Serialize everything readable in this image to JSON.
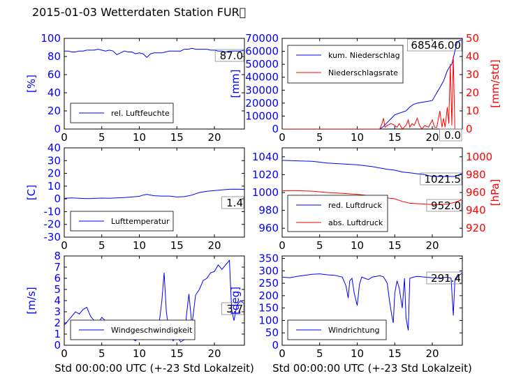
{
  "title": "2015-01-03 Wetterdaten Station FUR\u0000",
  "xlabel": "Std 00:00:00 UTC (+-23 Std Lokalzeit)",
  "colors": {
    "left": "#0000ff",
    "right": "#ff0000",
    "bg": "#ffffff"
  },
  "chart_data": [
    {
      "type": "line",
      "panel": "humidity",
      "ylabel": "[%]",
      "ylim": [
        0,
        100
      ],
      "yticks": [
        0,
        20,
        40,
        60,
        80,
        100
      ],
      "xlim": [
        0,
        24
      ],
      "xticks": [
        0,
        5,
        10,
        15,
        20
      ],
      "current_value": "87.0",
      "legend_placement": "lower-left",
      "series": [
        {
          "name": "rel. Luftfeuchte",
          "color": "#0000ff",
          "x": [
            0,
            0.5,
            1,
            1.5,
            2,
            2.5,
            3,
            3.5,
            4,
            4.5,
            5,
            5.5,
            6,
            6.5,
            7,
            7.5,
            8,
            8.5,
            9,
            9.5,
            10,
            10.5,
            11,
            11.5,
            12,
            12.5,
            13,
            13.5,
            14,
            14.5,
            15,
            15.5,
            16,
            16.5,
            17,
            17.5,
            18,
            18.5,
            19,
            19.5,
            20,
            20.5,
            21,
            21.5,
            22,
            22.5,
            23,
            23.5,
            24
          ],
          "y": [
            86,
            86,
            85,
            85,
            86,
            86,
            87,
            87,
            87,
            88,
            87,
            86,
            87,
            86,
            82,
            84,
            86,
            85,
            85,
            83,
            84,
            83,
            79,
            83,
            84,
            84,
            84,
            85,
            86,
            86,
            86,
            86,
            88,
            88,
            89,
            88,
            88,
            88,
            88,
            87,
            87,
            86,
            86,
            85,
            86,
            86,
            86,
            86,
            87
          ]
        }
      ]
    },
    {
      "type": "line",
      "panel": "precipitation",
      "ylabel": "[mm]",
      "ylim": [
        0,
        70000
      ],
      "yticks": [
        0,
        10000,
        20000,
        30000,
        40000,
        50000,
        60000,
        70000
      ],
      "y2label": "[mm/std]",
      "y2lim": [
        0,
        50
      ],
      "y2ticks": [
        0,
        10,
        20,
        30,
        40,
        50
      ],
      "xlim": [
        0,
        24
      ],
      "xticks": [
        0,
        5,
        10,
        15,
        20
      ],
      "current_value": "68546.00",
      "current_value2": "0.0",
      "legend_placement": "top-left",
      "series": [
        {
          "name": "kum. Niederschlag",
          "axis": "left",
          "color": "#0000ff",
          "x": [
            0,
            13,
            13.5,
            14,
            14.5,
            15,
            15.5,
            16,
            16.5,
            17,
            17.5,
            18,
            18.5,
            19,
            19.5,
            20,
            20.5,
            21,
            21.5,
            22,
            22.3,
            22.6,
            23,
            23.3,
            23.7,
            24
          ],
          "y": [
            0,
            0,
            2000,
            5000,
            8000,
            11000,
            12000,
            13000,
            14000,
            17000,
            19000,
            20000,
            20500,
            21000,
            21500,
            22000,
            27000,
            32000,
            37000,
            45000,
            48000,
            50000,
            60000,
            67000,
            68546,
            68546
          ]
        },
        {
          "name": "Niederschlagsrate",
          "axis": "right",
          "color": "#ff0000",
          "x": [
            0,
            13,
            13.3,
            13.5,
            13.7,
            14,
            14.5,
            15,
            15.3,
            15.6,
            16,
            16.5,
            16.8,
            17,
            17.3,
            17.6,
            18,
            18.3,
            18.6,
            19,
            19.5,
            20,
            20.3,
            20.6,
            21,
            21.3,
            21.5,
            21.7,
            22,
            22.2,
            22.4,
            22.6,
            22.8,
            23,
            23.3,
            24
          ],
          "y": [
            0,
            0,
            3,
            6,
            1,
            2,
            3,
            2,
            1,
            3,
            0,
            2,
            5,
            1,
            3,
            2,
            6,
            2,
            0,
            2,
            1,
            5,
            1,
            1,
            10,
            1,
            6,
            1,
            12,
            3,
            36,
            2,
            40,
            0,
            0,
            0
          ]
        }
      ]
    },
    {
      "type": "line",
      "panel": "temperature",
      "ylabel": "[C]",
      "ylim": [
        -30,
        40
      ],
      "yticks": [
        -30,
        -20,
        -10,
        0,
        10,
        20,
        30,
        40
      ],
      "xlim": [
        0,
        24
      ],
      "xticks": [
        0,
        5,
        10,
        15,
        20
      ],
      "current_value": "1.4",
      "legend_placement": "lower-left",
      "series": [
        {
          "name": "Lufttemperatur",
          "color": "#0000ff",
          "x": [
            0,
            1,
            2,
            3,
            4,
            5,
            6,
            7,
            8,
            9,
            10,
            10.5,
            11,
            11.5,
            12,
            13,
            14,
            15,
            16,
            17,
            18,
            19,
            20,
            21,
            22,
            23,
            24
          ],
          "y": [
            0.5,
            0.8,
            0.5,
            0.2,
            0.4,
            0.6,
            0.5,
            0.8,
            1,
            1.5,
            2,
            3,
            3.5,
            3,
            2.5,
            2.2,
            2.2,
            1.5,
            1.8,
            3,
            5,
            6,
            6.5,
            7,
            7.5,
            7.6,
            7.4
          ]
        }
      ]
    },
    {
      "type": "line",
      "panel": "pressure",
      "ylim": [
        950,
        1050
      ],
      "yticks": [
        960,
        980,
        1000,
        1020,
        1040
      ],
      "y2label": "[hPa]",
      "y2lim": [
        910,
        1010
      ],
      "y2ticks": [
        920,
        940,
        960,
        980,
        1000
      ],
      "xlim": [
        0,
        24
      ],
      "xticks": [
        0,
        5,
        10,
        15,
        20
      ],
      "current_value": "1021.5",
      "current_value2": "952.0",
      "legend_placement": "lower-left",
      "series": [
        {
          "name": "red. Luftdruck",
          "axis": "left",
          "color": "#0000ff",
          "x": [
            0,
            2,
            4,
            6,
            8,
            10,
            12,
            14,
            15,
            16,
            17,
            18,
            19,
            20,
            21,
            22,
            23,
            24
          ],
          "y": [
            1036,
            1035.5,
            1035,
            1033,
            1032,
            1031,
            1029,
            1026,
            1025,
            1023,
            1022,
            1021,
            1020,
            1018,
            1018,
            1018,
            1018,
            1021.5
          ]
        },
        {
          "name": "abs. Luftdruck",
          "axis": "right",
          "color": "#ff0000",
          "x": [
            0,
            2,
            4,
            6,
            8,
            10,
            12,
            14,
            15,
            16,
            17,
            18,
            19,
            20,
            21,
            22,
            23,
            24
          ],
          "y": [
            962,
            962,
            961.5,
            960,
            959,
            958,
            956,
            954,
            953,
            950,
            948,
            947.5,
            947,
            946.5,
            946.5,
            947,
            949,
            952
          ]
        }
      ]
    },
    {
      "type": "line",
      "panel": "windspeed",
      "ylabel": "[m/s]",
      "ylim": [
        0,
        8
      ],
      "yticks": [
        0,
        1,
        2,
        3,
        4,
        5,
        6,
        7,
        8
      ],
      "xlim": [
        0,
        24
      ],
      "xticks": [
        0,
        5,
        10,
        15,
        20
      ],
      "xlabel_shown": true,
      "current_value": "3.7",
      "legend_placement": "lower-center",
      "series": [
        {
          "name": "Windgeschwindigkeit",
          "color": "#0000ff",
          "x": [
            0,
            0.5,
            1,
            1.5,
            2,
            2.5,
            3,
            3.5,
            4,
            4.5,
            5,
            5.5,
            6,
            6.5,
            7,
            7.5,
            8,
            8.5,
            9,
            9.5,
            10,
            10.5,
            11,
            11.5,
            12,
            12.5,
            13,
            13.3,
            13.6,
            14,
            14.5,
            15,
            15.5,
            16,
            16.3,
            16.6,
            17,
            17.5,
            18,
            18.5,
            19,
            19.5,
            20,
            20.5,
            21,
            21.5,
            22,
            22.3,
            22.6,
            23,
            23.5,
            24
          ],
          "y": [
            1.8,
            2.2,
            2.6,
            3,
            2.8,
            3.2,
            3.4,
            2.6,
            2.2,
            2,
            2.5,
            2.2,
            1.4,
            1,
            0.8,
            0.6,
            1,
            1.2,
            0.6,
            0.4,
            0.8,
            0.5,
            1.2,
            1.5,
            1,
            1.2,
            4,
            6.5,
            3,
            1,
            0.4,
            0.8,
            0.3,
            0.5,
            2.8,
            4.6,
            1.8,
            4.5,
            5,
            5.8,
            6,
            6.5,
            6.6,
            7.2,
            6.8,
            7.2,
            7.6,
            3.2,
            2.2,
            3.6,
            4,
            3.7
          ]
        }
      ]
    },
    {
      "type": "line",
      "panel": "winddirection",
      "ylabel": "[deg]",
      "ylim": [
        0,
        360
      ],
      "yticks": [
        0,
        50,
        100,
        150,
        200,
        250,
        300,
        350
      ],
      "xlim": [
        0,
        24
      ],
      "xticks": [
        0,
        5,
        10,
        15,
        20
      ],
      "xlabel_shown": true,
      "current_value": "291.4",
      "legend_placement": "lower-left",
      "series": [
        {
          "name": "Windrichtung",
          "color": "#0000ff",
          "x": [
            0,
            1,
            2,
            3,
            4,
            5,
            6,
            7,
            8,
            8.5,
            8.8,
            9,
            9.3,
            9.6,
            10,
            10.3,
            10.6,
            11,
            11.5,
            12,
            13,
            13.5,
            14,
            14.3,
            14.6,
            14.8,
            15,
            15.3,
            15.6,
            16,
            16.3,
            16.5,
            16.8,
            17,
            17.5,
            18,
            19,
            20,
            21,
            22,
            22.5,
            22.8,
            23,
            23.5,
            24
          ],
          "y": [
            275,
            272,
            278,
            282,
            286,
            288,
            284,
            282,
            275,
            240,
            190,
            260,
            270,
            210,
            160,
            245,
            275,
            270,
            265,
            275,
            280,
            276,
            250,
            180,
            120,
            90,
            210,
            260,
            230,
            150,
            270,
            110,
            60,
            270,
            275,
            278,
            275,
            272,
            270,
            275,
            270,
            120,
            260,
            280,
            291.4
          ]
        }
      ]
    }
  ]
}
